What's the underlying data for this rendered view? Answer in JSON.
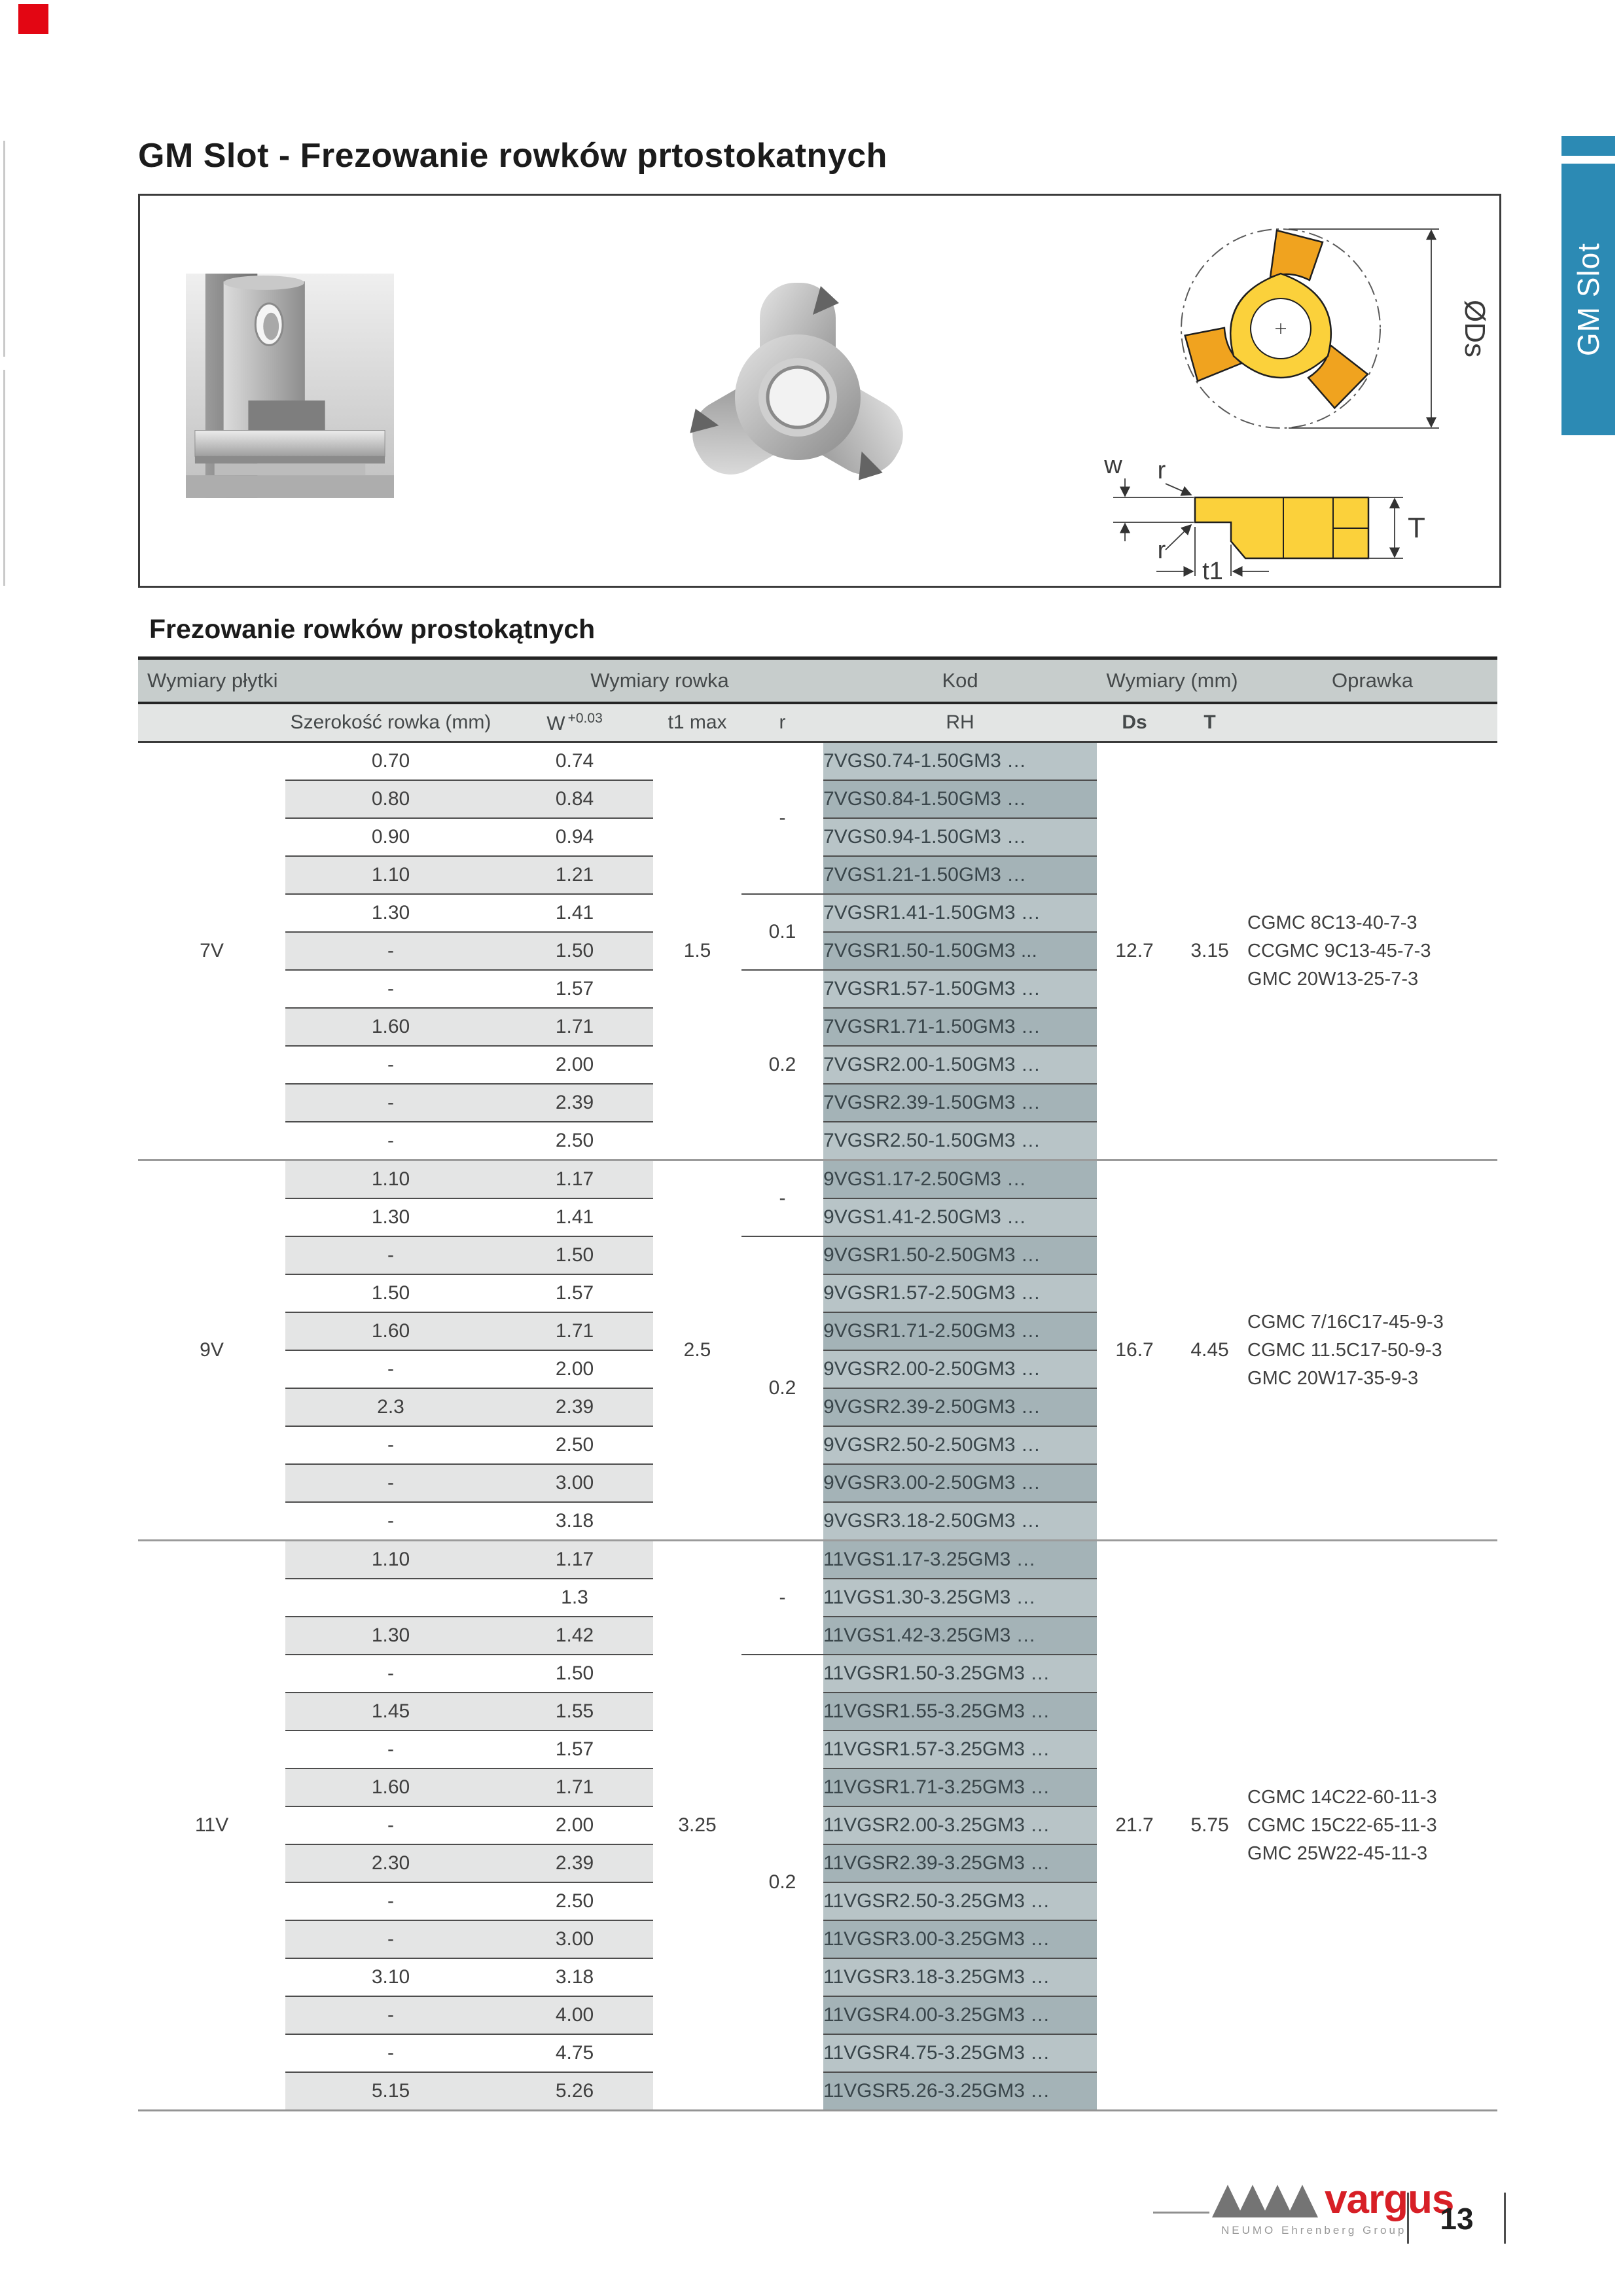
{
  "page": {
    "title": "GM Slot - Frezowanie rowków prtostokatnych",
    "section_title": "Frezowanie rowków prostokątnych",
    "side_tab_label": "GM Slot",
    "page_number": "13",
    "footer": {
      "brand": "vargus",
      "brand_subtitle": "NEUMO Ehrenberg Group"
    },
    "colors": {
      "tab_blue": "#2c8ab4",
      "brand_red": "#d71f26",
      "corner_red": "#e30613",
      "row_shade": "#e4e5e5",
      "code_light": "#b8c4c7",
      "code_dark": "#a4b3b7",
      "header_dark": "#c7cdcc",
      "header_light": "#e3e5e4",
      "insert_yellow": "#fbd13b",
      "insert_yellow_dark": "#f0a31f"
    }
  },
  "diagram": {
    "labels": {
      "w": "w",
      "r_upper": "r",
      "r_lower": "r",
      "t1": "t1",
      "T": "T",
      "ds": "ØDs"
    }
  },
  "table": {
    "header": {
      "wymiary_plytki": "Wymiary płytki",
      "wymiary_rowka": "Wymiary rowka",
      "kod": "Kod",
      "wymiary_mm": "Wymiary (mm)",
      "oprawka": "Oprawka",
      "szerokosc": "Szerokość rowka (mm)",
      "w": "W",
      "w_tol": "+0.03",
      "t1_max": "t1 max",
      "r": "r",
      "rh": "RH",
      "ds": "Ds",
      "t": "T"
    },
    "groups": [
      {
        "label": "7V",
        "t1_max": "1.5",
        "ds": "12.7",
        "t": "3.15",
        "oprawka": [
          "CGMC 8C13-40-7-3",
          "CCGMC 9C13-45-7-3",
          "GMC 20W13-25-7-3"
        ],
        "r_zones": [
          {
            "label": "-",
            "rows": 4
          },
          {
            "label": "0.1",
            "rows": 2
          },
          {
            "label": "0.2",
            "rows": 5
          }
        ],
        "rows": [
          {
            "szer": "0.70",
            "w": "0.74",
            "code": "7VGS0.74-1.50GM3 …",
            "shaded": false
          },
          {
            "szer": "0.80",
            "w": "0.84",
            "code": "7VGS0.84-1.50GM3 …",
            "shaded": true
          },
          {
            "szer": "0.90",
            "w": "0.94",
            "code": "7VGS0.94-1.50GM3 …",
            "shaded": false
          },
          {
            "szer": "1.10",
            "w": "1.21",
            "code": "7VGS1.21-1.50GM3 …",
            "shaded": true
          },
          {
            "szer": "1.30",
            "w": "1.41",
            "code": "7VGSR1.41-1.50GM3 …",
            "shaded": false
          },
          {
            "szer": "-",
            "w": "1.50",
            "code": "7VGSR1.50-1.50GM3 ...",
            "shaded": true
          },
          {
            "szer": "-",
            "w": "1.57",
            "code": "7VGSR1.57-1.50GM3 …",
            "shaded": false
          },
          {
            "szer": "1.60",
            "w": "1.71",
            "code": "7VGSR1.71-1.50GM3 …",
            "shaded": true
          },
          {
            "szer": "-",
            "w": "2.00",
            "code": "7VGSR2.00-1.50GM3 …",
            "shaded": false
          },
          {
            "szer": "-",
            "w": "2.39",
            "code": "7VGSR2.39-1.50GM3 …",
            "shaded": true
          },
          {
            "szer": "-",
            "w": "2.50",
            "code": "7VGSR2.50-1.50GM3 …",
            "shaded": false
          }
        ]
      },
      {
        "label": "9V",
        "t1_max": "2.5",
        "ds": "16.7",
        "t": "4.45",
        "oprawka": [
          "CGMC 7/16C17-45-9-3",
          "CGMC 11.5C17-50-9-3",
          "GMC 20W17-35-9-3"
        ],
        "r_zones": [
          {
            "label": "-",
            "rows": 2
          },
          {
            "label": "0.2",
            "rows": 8
          }
        ],
        "rows": [
          {
            "szer": "1.10",
            "w": "1.17",
            "code": "9VGS1.17-2.50GM3 …",
            "shaded": true
          },
          {
            "szer": "1.30",
            "w": "1.41",
            "code": "9VGS1.41-2.50GM3 …",
            "shaded": false
          },
          {
            "szer": "-",
            "w": "1.50",
            "code": "9VGSR1.50-2.50GM3 …",
            "shaded": true
          },
          {
            "szer": "1.50",
            "w": "1.57",
            "code": "9VGSR1.57-2.50GM3 …",
            "shaded": false
          },
          {
            "szer": "1.60",
            "w": "1.71",
            "code": "9VGSR1.71-2.50GM3 …",
            "shaded": true
          },
          {
            "szer": "-",
            "w": "2.00",
            "code": "9VGSR2.00-2.50GM3 …",
            "shaded": false
          },
          {
            "szer": "2.3",
            "w": "2.39",
            "code": "9VGSR2.39-2.50GM3 …",
            "shaded": true
          },
          {
            "szer": "-",
            "w": "2.50",
            "code": "9VGSR2.50-2.50GM3 …",
            "shaded": false
          },
          {
            "szer": "-",
            "w": "3.00",
            "code": "9VGSR3.00-2.50GM3 …",
            "shaded": true
          },
          {
            "szer": "-",
            "w": "3.18",
            "code": "9VGSR3.18-2.50GM3 …",
            "shaded": false
          }
        ]
      },
      {
        "label": "11V",
        "t1_max": "3.25",
        "ds": "21.7",
        "t": "5.75",
        "oprawka": [
          "CGMC 14C22-60-11-3",
          "CGMC 15C22-65-11-3",
          "GMC 25W22-45-11-3"
        ],
        "r_zones": [
          {
            "label": "-",
            "rows": 3
          },
          {
            "label": "0.2",
            "rows": 12
          }
        ],
        "rows": [
          {
            "szer": "1.10",
            "w": "1.17",
            "code": "11VGS1.17-3.25GM3 …",
            "shaded": true
          },
          {
            "szer": "",
            "w": "1.3",
            "code": "11VGS1.30-3.25GM3 …",
            "shaded": false
          },
          {
            "szer": "1.30",
            "w": "1.42",
            "code": "11VGS1.42-3.25GM3 …",
            "shaded": true
          },
          {
            "szer": "-",
            "w": "1.50",
            "code": "11VGSR1.50-3.25GM3 …",
            "shaded": false
          },
          {
            "szer": "1.45",
            "w": "1.55",
            "code": "11VGSR1.55-3.25GM3 …",
            "shaded": true
          },
          {
            "szer": "-",
            "w": "1.57",
            "code": "11VGSR1.57-3.25GM3 …",
            "shaded": false
          },
          {
            "szer": "1.60",
            "w": "1.71",
            "code": "11VGSR1.71-3.25GM3 …",
            "shaded": true
          },
          {
            "szer": "-",
            "w": "2.00",
            "code": "11VGSR2.00-3.25GM3 …",
            "shaded": false
          },
          {
            "szer": "2.30",
            "w": "2.39",
            "code": "11VGSR2.39-3.25GM3 …",
            "shaded": true
          },
          {
            "szer": "-",
            "w": "2.50",
            "code": "11VGSR2.50-3.25GM3 …",
            "shaded": false
          },
          {
            "szer": "-",
            "w": "3.00",
            "code": "11VGSR3.00-3.25GM3 …",
            "shaded": true
          },
          {
            "szer": "3.10",
            "w": "3.18",
            "code": "11VGSR3.18-3.25GM3 …",
            "shaded": false
          },
          {
            "szer": "-",
            "w": "4.00",
            "code": "11VGSR4.00-3.25GM3 …",
            "shaded": true
          },
          {
            "szer": "-",
            "w": "4.75",
            "code": "11VGSR4.75-3.25GM3 …",
            "shaded": false
          },
          {
            "szer": "5.15",
            "w": "5.26",
            "code": "11VGSR5.26-3.25GM3 …",
            "shaded": true
          }
        ]
      }
    ]
  }
}
